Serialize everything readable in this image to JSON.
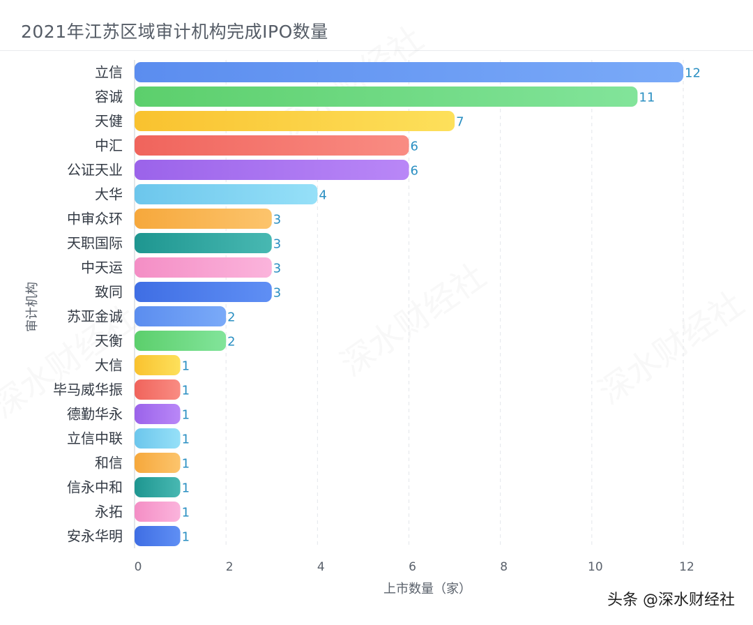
{
  "title": "2021年江苏区域审计机构完成IPO数量",
  "credit": "头条 @深水财经社",
  "watermark": "深水财经社",
  "chart_data": {
    "type": "bar",
    "orientation": "horizontal",
    "categories": [
      "立信",
      "容诚",
      "天健",
      "中汇",
      "公证天业",
      "大华",
      "中审众环",
      "天职国际",
      "中天运",
      "致同",
      "苏亚金诚",
      "天衡",
      "大信",
      "毕马威华振",
      "德勤华永",
      "立信中联",
      "和信",
      "信永中和",
      "永拓",
      "安永华明"
    ],
    "values": [
      12,
      11,
      7,
      6,
      6,
      4,
      3,
      3,
      3,
      3,
      2,
      2,
      1,
      1,
      1,
      1,
      1,
      1,
      1,
      1
    ],
    "xlabel": "上市数量（家）",
    "ylabel": "审计机构",
    "xlim": [
      0,
      12
    ],
    "xticks": [
      0,
      2,
      4,
      6,
      8,
      10,
      12
    ],
    "grid": "vertical dashed",
    "legend": "none",
    "bar_colors": [
      [
        "#5b8def",
        "#7aaaf8"
      ],
      [
        "#5ccf6c",
        "#82e49a"
      ],
      [
        "#f9c22f",
        "#fde05b"
      ],
      [
        "#f0645c",
        "#f98c83"
      ],
      [
        "#9b63ea",
        "#b987f7"
      ],
      [
        "#6cc6ec",
        "#96e0f8"
      ],
      [
        "#f6a83c",
        "#fcc46c"
      ],
      [
        "#1e9690",
        "#48b8b2"
      ],
      [
        "#f48ec5",
        "#fbb4dc"
      ],
      [
        "#3f6ee4",
        "#5f8ff4"
      ]
    ]
  }
}
